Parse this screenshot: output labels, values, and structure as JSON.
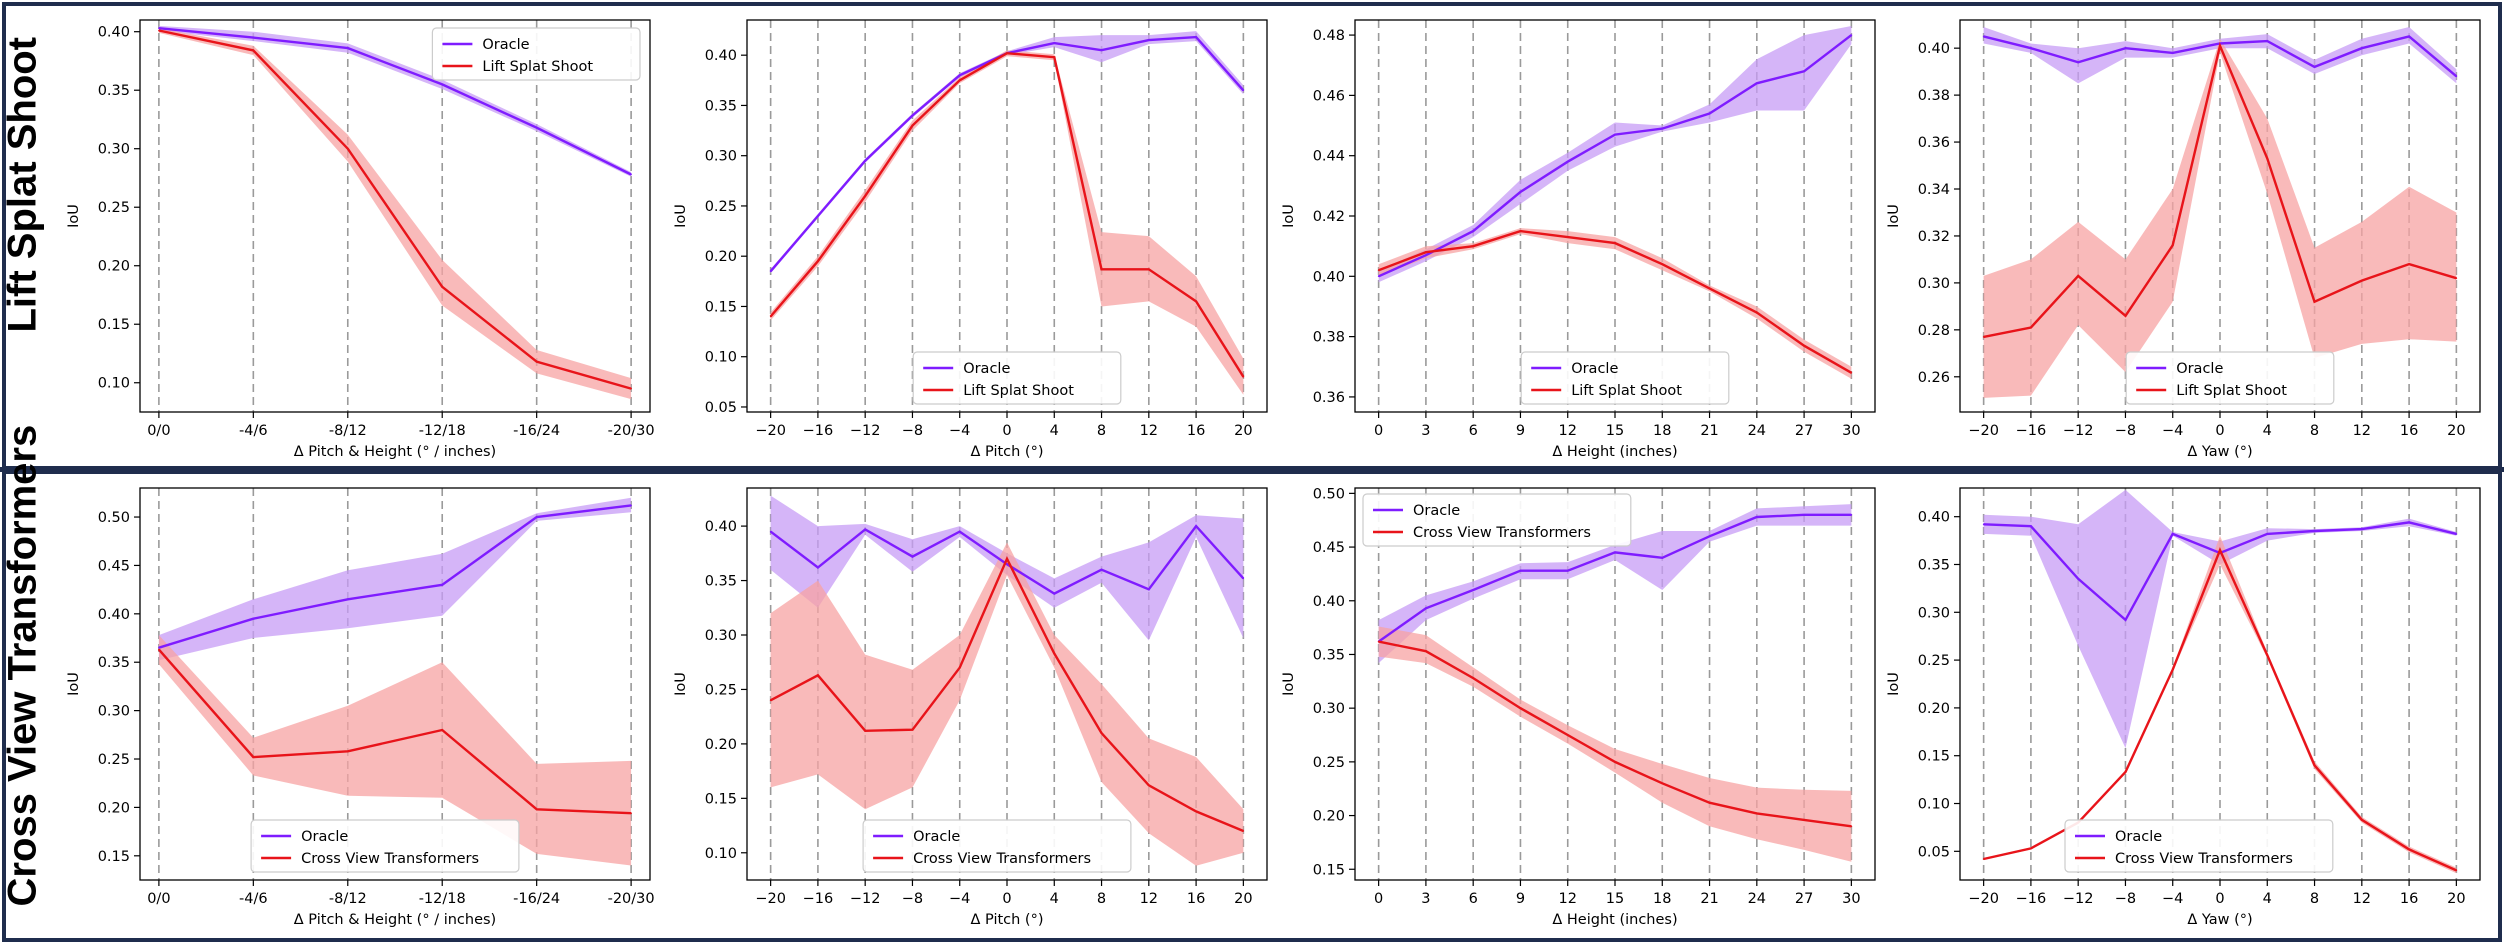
{
  "row_labels": {
    "top": "Lift Splat Shoot",
    "bottom": "Cross View Transformers"
  },
  "colors": {
    "oracle": "#7f1cff",
    "oracle_fill": "#c79cf5",
    "model": "#e8141a",
    "model_fill": "#f7a3a3",
    "frame": "#1f2d4d"
  },
  "chart_data": [
    {
      "type": "line",
      "row": 0,
      "col": 0,
      "xlabel": "Δ Pitch & Height (° / inches)",
      "ylabel": "IoU",
      "categories": [
        "0/0",
        "-4/6",
        "-8/12",
        "-12/18",
        "-16/24",
        "-20/30"
      ],
      "xlim": [
        -0.2,
        5.2
      ],
      "ylim": [
        0.075,
        0.41
      ],
      "yticks": [
        0.1,
        0.15,
        0.2,
        0.25,
        0.3,
        0.35,
        0.4
      ],
      "ytick_labels": [
        "0.10",
        "0.15",
        "0.20",
        "0.25",
        "0.30",
        "0.35",
        "0.40"
      ],
      "legend": {
        "position": "top-right",
        "entries": [
          "Oracle",
          "Lift Splat Shoot"
        ]
      },
      "series": [
        {
          "name": "Oracle",
          "values": [
            0.403,
            0.395,
            0.386,
            0.355,
            0.318,
            0.278
          ],
          "lower": [
            0.401,
            0.392,
            0.382,
            0.351,
            0.315,
            0.276
          ],
          "upper": [
            0.405,
            0.4,
            0.39,
            0.359,
            0.321,
            0.28
          ]
        },
        {
          "name": "Lift Splat Shoot",
          "values": [
            0.401,
            0.384,
            0.3,
            0.182,
            0.118,
            0.095
          ],
          "lower": [
            0.399,
            0.38,
            0.289,
            0.166,
            0.108,
            0.086
          ],
          "upper": [
            0.403,
            0.388,
            0.312,
            0.205,
            0.128,
            0.104
          ]
        }
      ]
    },
    {
      "type": "line",
      "row": 0,
      "col": 1,
      "xlabel": "Δ Pitch (°)",
      "ylabel": "IoU",
      "categories": [
        "−20",
        "−16",
        "−12",
        "−8",
        "−4",
        "0",
        "4",
        "8",
        "12",
        "16",
        "20"
      ],
      "xlim": [
        -0.5,
        10.5
      ],
      "ylim": [
        0.045,
        0.435
      ],
      "yticks": [
        0.05,
        0.1,
        0.15,
        0.2,
        0.25,
        0.3,
        0.35,
        0.4
      ],
      "ytick_labels": [
        "0.05",
        "0.10",
        "0.15",
        "0.20",
        "0.25",
        "0.30",
        "0.35",
        "0.40"
      ],
      "legend": {
        "position": "lower-center",
        "entries": [
          "Oracle",
          "Lift Splat Shoot"
        ]
      },
      "series": [
        {
          "name": "Oracle",
          "values": [
            0.185,
            0.24,
            0.295,
            0.34,
            0.38,
            0.402,
            0.412,
            0.405,
            0.415,
            0.418,
            0.365
          ],
          "lower": [
            0.183,
            0.238,
            0.293,
            0.338,
            0.378,
            0.4,
            0.408,
            0.393,
            0.411,
            0.414,
            0.361
          ],
          "upper": [
            0.187,
            0.242,
            0.297,
            0.342,
            0.382,
            0.404,
            0.418,
            0.42,
            0.42,
            0.424,
            0.37
          ]
        },
        {
          "name": "Lift Splat Shoot",
          "values": [
            0.14,
            0.195,
            0.26,
            0.33,
            0.375,
            0.402,
            0.398,
            0.187,
            0.187,
            0.155,
            0.08
          ],
          "lower": [
            0.136,
            0.19,
            0.254,
            0.325,
            0.372,
            0.399,
            0.395,
            0.15,
            0.155,
            0.13,
            0.062
          ],
          "upper": [
            0.144,
            0.2,
            0.266,
            0.335,
            0.378,
            0.405,
            0.401,
            0.224,
            0.22,
            0.18,
            0.098
          ]
        }
      ]
    },
    {
      "type": "line",
      "row": 0,
      "col": 2,
      "xlabel": "Δ Height (inches)",
      "ylabel": "IoU",
      "categories": [
        "0",
        "3",
        "6",
        "9",
        "12",
        "15",
        "18",
        "21",
        "24",
        "27",
        "30"
      ],
      "xlim": [
        -0.5,
        10.5
      ],
      "ylim": [
        0.355,
        0.485
      ],
      "yticks": [
        0.36,
        0.38,
        0.4,
        0.42,
        0.44,
        0.46,
        0.48
      ],
      "ytick_labels": [
        "0.36",
        "0.38",
        "0.40",
        "0.42",
        "0.44",
        "0.46",
        "0.48"
      ],
      "legend": {
        "position": "lower-center",
        "entries": [
          "Oracle",
          "Lift Splat Shoot"
        ]
      },
      "series": [
        {
          "name": "Oracle",
          "values": [
            0.4,
            0.407,
            0.415,
            0.428,
            0.438,
            0.447,
            0.449,
            0.454,
            0.464,
            0.468,
            0.48
          ],
          "lower": [
            0.398,
            0.405,
            0.413,
            0.424,
            0.435,
            0.443,
            0.448,
            0.451,
            0.455,
            0.455,
            0.477
          ],
          "upper": [
            0.402,
            0.409,
            0.417,
            0.432,
            0.441,
            0.451,
            0.45,
            0.457,
            0.472,
            0.48,
            0.483
          ]
        },
        {
          "name": "Lift Splat Shoot",
          "values": [
            0.402,
            0.408,
            0.41,
            0.415,
            0.413,
            0.411,
            0.404,
            0.396,
            0.388,
            0.377,
            0.368
          ],
          "lower": [
            0.4,
            0.406,
            0.409,
            0.414,
            0.411,
            0.409,
            0.402,
            0.395,
            0.386,
            0.375,
            0.366
          ],
          "upper": [
            0.404,
            0.41,
            0.411,
            0.416,
            0.415,
            0.413,
            0.406,
            0.397,
            0.39,
            0.379,
            0.37
          ]
        }
      ]
    },
    {
      "type": "line",
      "row": 0,
      "col": 3,
      "xlabel": "Δ Yaw (°)",
      "ylabel": "IoU",
      "categories": [
        "−20",
        "−16",
        "−12",
        "−8",
        "−4",
        "0",
        "4",
        "8",
        "12",
        "16",
        "20"
      ],
      "xlim": [
        -0.5,
        10.5
      ],
      "ylim": [
        0.245,
        0.412
      ],
      "yticks": [
        0.26,
        0.28,
        0.3,
        0.32,
        0.34,
        0.36,
        0.38,
        0.4
      ],
      "ytick_labels": [
        "0.26",
        "0.28",
        "0.30",
        "0.32",
        "0.34",
        "0.36",
        "0.38",
        "0.40"
      ],
      "legend": {
        "position": "lower-center",
        "entries": [
          "Oracle",
          "Lift Splat Shoot"
        ]
      },
      "series": [
        {
          "name": "Oracle",
          "values": [
            0.405,
            0.4,
            0.394,
            0.4,
            0.398,
            0.402,
            0.403,
            0.392,
            0.4,
            0.405,
            0.388
          ],
          "lower": [
            0.402,
            0.398,
            0.385,
            0.396,
            0.396,
            0.4,
            0.4,
            0.389,
            0.397,
            0.402,
            0.385
          ],
          "upper": [
            0.409,
            0.402,
            0.4,
            0.403,
            0.4,
            0.404,
            0.406,
            0.395,
            0.404,
            0.409,
            0.391
          ]
        },
        {
          "name": "Lift Splat Shoot",
          "values": [
            0.277,
            0.281,
            0.303,
            0.286,
            0.316,
            0.401,
            0.353,
            0.292,
            0.301,
            0.308,
            0.302
          ],
          "lower": [
            0.251,
            0.252,
            0.282,
            0.262,
            0.292,
            0.398,
            0.338,
            0.268,
            0.274,
            0.276,
            0.275
          ],
          "upper": [
            0.303,
            0.31,
            0.326,
            0.31,
            0.34,
            0.404,
            0.37,
            0.315,
            0.326,
            0.341,
            0.33
          ]
        }
      ]
    },
    {
      "type": "line",
      "row": 1,
      "col": 0,
      "xlabel": "Δ Pitch & Height (° / inches)",
      "ylabel": "IoU",
      "categories": [
        "0/0",
        "-4/6",
        "-8/12",
        "-12/18",
        "-16/24",
        "-20/30"
      ],
      "xlim": [
        -0.2,
        5.2
      ],
      "ylim": [
        0.125,
        0.53
      ],
      "yticks": [
        0.15,
        0.2,
        0.25,
        0.3,
        0.35,
        0.4,
        0.45,
        0.5
      ],
      "ytick_labels": [
        "0.15",
        "0.20",
        "0.25",
        "0.30",
        "0.35",
        "0.40",
        "0.45",
        "0.50"
      ],
      "legend": {
        "position": "lower-center",
        "entries": [
          "Oracle",
          "Cross View Transformers"
        ]
      },
      "series": [
        {
          "name": "Oracle",
          "values": [
            0.365,
            0.395,
            0.415,
            0.43,
            0.5,
            0.512
          ],
          "lower": [
            0.352,
            0.375,
            0.385,
            0.398,
            0.496,
            0.505
          ],
          "upper": [
            0.378,
            0.415,
            0.445,
            0.462,
            0.504,
            0.52
          ]
        },
        {
          "name": "Cross View Transformers",
          "values": [
            0.363,
            0.252,
            0.258,
            0.28,
            0.198,
            0.194
          ],
          "lower": [
            0.348,
            0.233,
            0.212,
            0.21,
            0.152,
            0.14
          ],
          "upper": [
            0.378,
            0.272,
            0.305,
            0.35,
            0.245,
            0.248
          ]
        }
      ]
    },
    {
      "type": "line",
      "row": 1,
      "col": 1,
      "xlabel": "Δ Pitch (°)",
      "ylabel": "IoU",
      "categories": [
        "−20",
        "−16",
        "−12",
        "−8",
        "−4",
        "0",
        "4",
        "8",
        "12",
        "16",
        "20"
      ],
      "xlim": [
        -0.5,
        10.5
      ],
      "ylim": [
        0.075,
        0.435
      ],
      "yticks": [
        0.1,
        0.15,
        0.2,
        0.25,
        0.3,
        0.35,
        0.4
      ],
      "ytick_labels": [
        "0.10",
        "0.15",
        "0.20",
        "0.25",
        "0.30",
        "0.35",
        "0.40"
      ],
      "legend": {
        "position": "lower-center",
        "entries": [
          "Oracle",
          "Cross View Transformers"
        ]
      },
      "series": [
        {
          "name": "Oracle",
          "values": [
            0.395,
            0.362,
            0.397,
            0.372,
            0.395,
            0.365,
            0.338,
            0.36,
            0.342,
            0.4,
            0.352
          ],
          "lower": [
            0.36,
            0.325,
            0.392,
            0.358,
            0.39,
            0.355,
            0.325,
            0.348,
            0.295,
            0.39,
            0.297
          ],
          "upper": [
            0.428,
            0.4,
            0.402,
            0.388,
            0.4,
            0.375,
            0.352,
            0.372,
            0.385,
            0.41,
            0.407
          ]
        },
        {
          "name": "Cross View Transformers",
          "values": [
            0.24,
            0.263,
            0.212,
            0.213,
            0.27,
            0.37,
            0.283,
            0.21,
            0.162,
            0.138,
            0.12
          ],
          "lower": [
            0.16,
            0.172,
            0.14,
            0.16,
            0.24,
            0.355,
            0.27,
            0.165,
            0.118,
            0.088,
            0.1
          ],
          "upper": [
            0.32,
            0.35,
            0.282,
            0.268,
            0.3,
            0.385,
            0.3,
            0.255,
            0.205,
            0.188,
            0.14
          ]
        }
      ]
    },
    {
      "type": "line",
      "row": 1,
      "col": 2,
      "xlabel": "Δ Height (inches)",
      "ylabel": "IoU",
      "categories": [
        "0",
        "3",
        "6",
        "9",
        "12",
        "15",
        "18",
        "21",
        "24",
        "27",
        "30"
      ],
      "xlim": [
        -0.5,
        10.5
      ],
      "ylim": [
        0.14,
        0.505
      ],
      "yticks": [
        0.15,
        0.2,
        0.25,
        0.3,
        0.35,
        0.4,
        0.45,
        0.5
      ],
      "ytick_labels": [
        "0.15",
        "0.20",
        "0.25",
        "0.30",
        "0.35",
        "0.40",
        "0.45",
        "0.50"
      ],
      "legend": {
        "position": "top-left",
        "entries": [
          "Oracle",
          "Cross View Transformers"
        ]
      },
      "series": [
        {
          "name": "Oracle",
          "values": [
            0.362,
            0.393,
            0.41,
            0.428,
            0.428,
            0.445,
            0.44,
            0.46,
            0.478,
            0.48,
            0.48
          ],
          "lower": [
            0.342,
            0.382,
            0.402,
            0.42,
            0.42,
            0.438,
            0.41,
            0.455,
            0.47,
            0.47,
            0.47
          ],
          "upper": [
            0.382,
            0.405,
            0.418,
            0.435,
            0.436,
            0.452,
            0.465,
            0.465,
            0.486,
            0.488,
            0.49
          ]
        },
        {
          "name": "Cross View Transformers",
          "values": [
            0.362,
            0.353,
            0.328,
            0.3,
            0.275,
            0.25,
            0.23,
            0.212,
            0.202,
            0.196,
            0.19
          ],
          "lower": [
            0.348,
            0.342,
            0.32,
            0.292,
            0.267,
            0.24,
            0.212,
            0.19,
            0.178,
            0.168,
            0.157
          ],
          "upper": [
            0.376,
            0.368,
            0.338,
            0.308,
            0.284,
            0.262,
            0.248,
            0.235,
            0.226,
            0.224,
            0.223
          ]
        }
      ]
    },
    {
      "type": "line",
      "row": 1,
      "col": 3,
      "xlabel": "Δ Yaw (°)",
      "ylabel": "IoU",
      "categories": [
        "−20",
        "−16",
        "−12",
        "−8",
        "−4",
        "0",
        "4",
        "8",
        "12",
        "16",
        "20"
      ],
      "xlim": [
        -0.5,
        10.5
      ],
      "ylim": [
        0.02,
        0.43
      ],
      "yticks": [
        0.05,
        0.1,
        0.15,
        0.2,
        0.25,
        0.3,
        0.35,
        0.4
      ],
      "ytick_labels": [
        "0.05",
        "0.10",
        "0.15",
        "0.20",
        "0.25",
        "0.30",
        "0.35",
        "0.40"
      ],
      "legend": {
        "position": "lower-left",
        "entries": [
          "Oracle",
          "Cross View Transformers"
        ]
      },
      "series": [
        {
          "name": "Oracle",
          "values": [
            0.392,
            0.39,
            0.335,
            0.292,
            0.382,
            0.362,
            0.382,
            0.385,
            0.387,
            0.394,
            0.382
          ],
          "lower": [
            0.382,
            0.38,
            0.265,
            0.158,
            0.38,
            0.35,
            0.375,
            0.383,
            0.385,
            0.39,
            0.38
          ],
          "upper": [
            0.402,
            0.4,
            0.392,
            0.428,
            0.384,
            0.374,
            0.388,
            0.387,
            0.389,
            0.398,
            0.384
          ]
        },
        {
          "name": "Cross View Transformers",
          "values": [
            0.042,
            0.053,
            0.08,
            0.133,
            0.24,
            0.365,
            0.255,
            0.14,
            0.083,
            0.052,
            0.03
          ],
          "lower": [
            0.041,
            0.052,
            0.079,
            0.132,
            0.238,
            0.35,
            0.252,
            0.136,
            0.08,
            0.049,
            0.027
          ],
          "upper": [
            0.043,
            0.054,
            0.081,
            0.134,
            0.242,
            0.38,
            0.258,
            0.144,
            0.086,
            0.055,
            0.033
          ]
        }
      ]
    }
  ]
}
